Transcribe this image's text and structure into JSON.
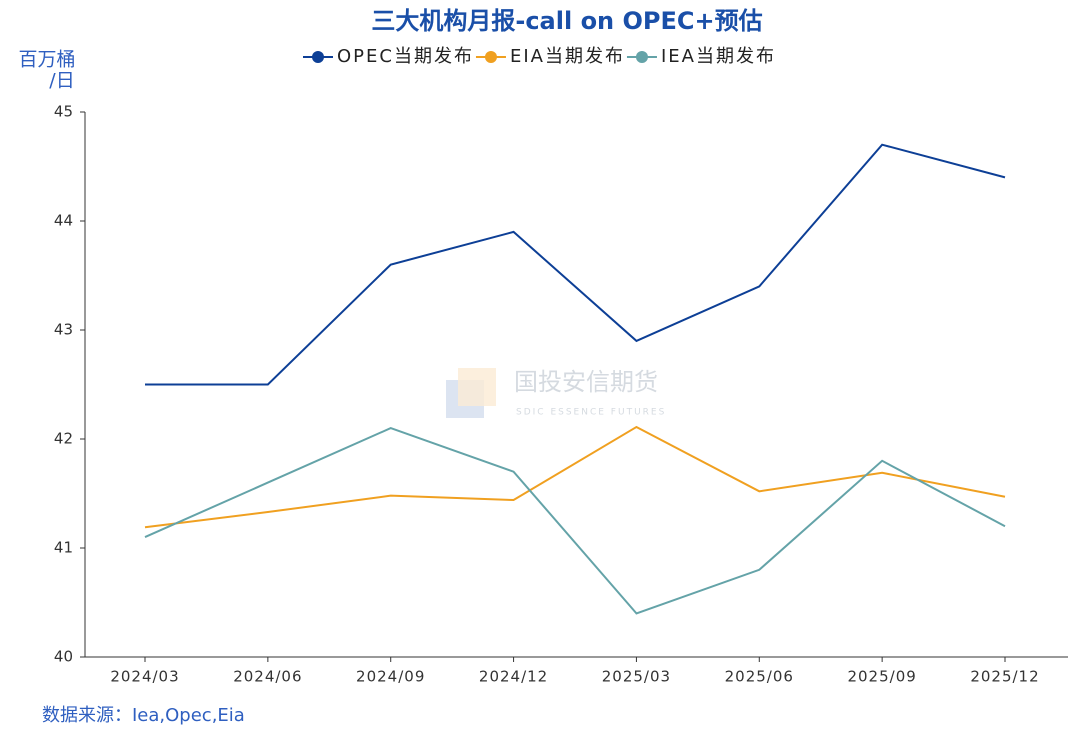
{
  "chart_data": {
    "type": "line",
    "title": "三大机构月报-call on OPEC+预估",
    "y_label": [
      "百万桶",
      "/日"
    ],
    "categories": [
      "2024/03",
      "2024/06",
      "2024/09",
      "2024/12",
      "2025/03",
      "2025/06",
      "2025/09",
      "2025/12"
    ],
    "series": [
      {
        "name": "OPEC当期发布",
        "color": "#0d3f96",
        "values": [
          42.5,
          42.5,
          43.6,
          43.9,
          42.9,
          43.4,
          44.7,
          44.4
        ]
      },
      {
        "name": "EIA当期发布",
        "color": "#f0a020",
        "values": [
          41.19,
          41.33,
          41.48,
          41.44,
          42.11,
          41.52,
          41.69,
          41.47
        ]
      },
      {
        "name": "IEA当期发布",
        "color": "#64a3a8",
        "values": [
          41.1,
          41.6,
          42.1,
          41.7,
          40.4,
          40.8,
          41.8,
          41.2
        ]
      }
    ],
    "ylim": [
      40,
      45
    ],
    "yticks": [
      40,
      41,
      42,
      43,
      44,
      45
    ],
    "grid": false,
    "watermark": [
      "国投安信期货",
      "SDIC ESSENCE FUTURES"
    ],
    "source": "数据来源：Iea,Opec,Eia"
  }
}
